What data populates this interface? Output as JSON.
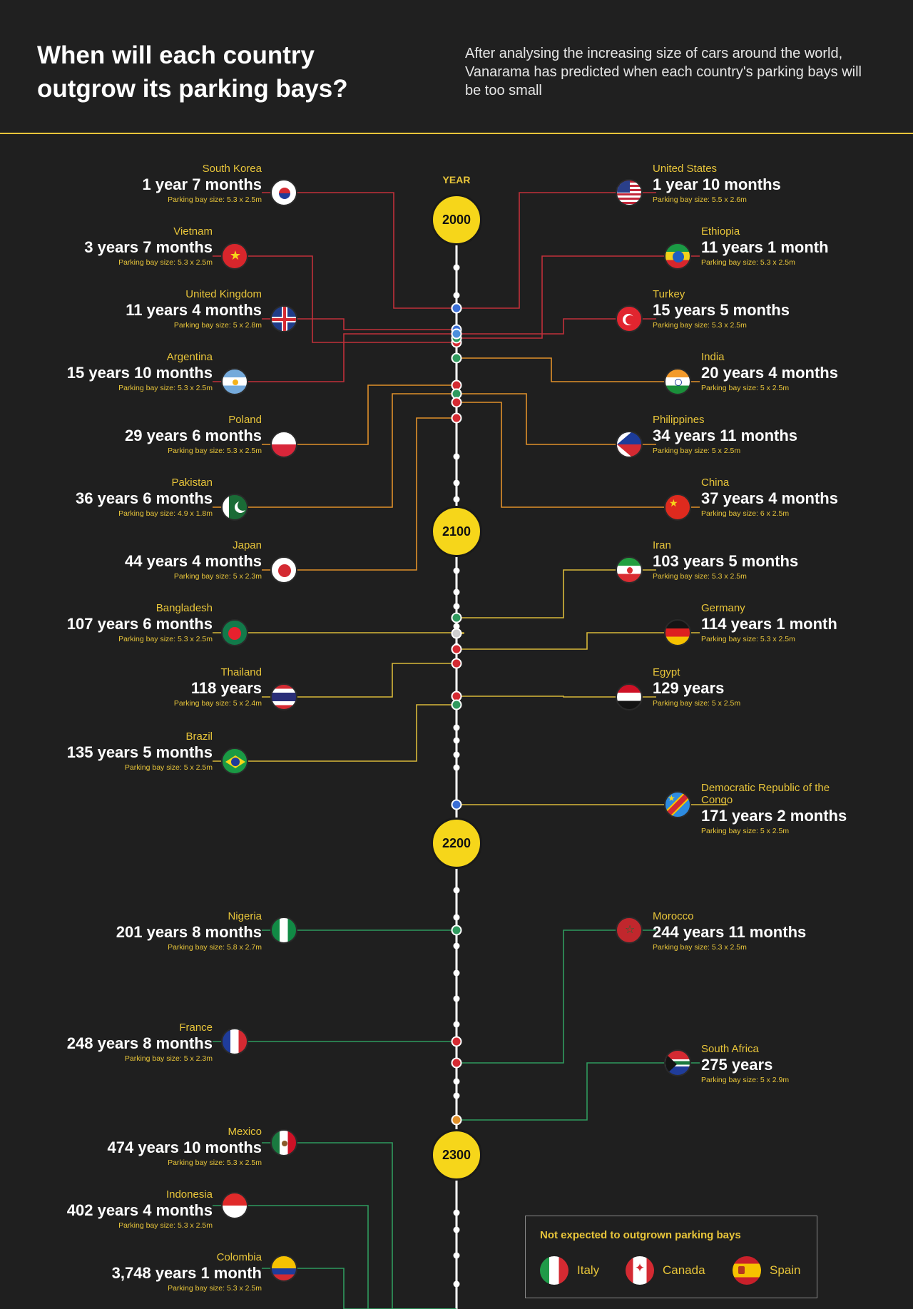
{
  "header": {
    "title": "When will each country outgrow its parking bays?",
    "subtitle": "After analysing the increasing size of cars around the world, Vanarama has predicted when each country's parking bays will be too small"
  },
  "timeline": {
    "axis_label": "YEAR",
    "years": [
      "2000",
      "2100",
      "2200",
      "2300"
    ]
  },
  "colors": {
    "background": "#1f1f1f",
    "accent": "#e8c53a",
    "year_bubble": "#f6d61a",
    "connector_red": "#c0303a",
    "connector_orange": "#e0902a",
    "connector_yellow": "#d8b83a",
    "connector_green": "#2f9a5e"
  },
  "countries": [
    {
      "name": "South Korea",
      "duration": "1 year 7 months",
      "bay": "Parking bay size: 5.3 x 2.5m",
      "flag_icon": "south-korea-flag-icon",
      "side": "left"
    },
    {
      "name": "United States",
      "duration": "1 year 10 months",
      "bay": "Parking bay size: 5.5 x 2.6m",
      "flag_icon": "united-states-flag-icon",
      "side": "right"
    },
    {
      "name": "Vietnam",
      "duration": "3 years 7 months",
      "bay": "Parking bay size: 5.3 x 2.5m",
      "flag_icon": "vietnam-flag-icon",
      "side": "left"
    },
    {
      "name": "Ethiopia",
      "duration": "11 years 1 month",
      "bay": "Parking bay size: 5.3 x 2.5m",
      "flag_icon": "ethiopia-flag-icon",
      "side": "right"
    },
    {
      "name": "United Kingdom",
      "duration": "11 years 4 months",
      "bay": "Parking bay size: 5 x 2.8m",
      "flag_icon": "united-kingdom-flag-icon",
      "side": "left"
    },
    {
      "name": "Turkey",
      "duration": "15 years 5 months",
      "bay": "Parking bay size: 5.3 x 2.5m",
      "flag_icon": "turkey-flag-icon",
      "side": "right"
    },
    {
      "name": "Argentina",
      "duration": "15 years 10 months",
      "bay": "Parking bay size: 5.3 x 2.5m",
      "flag_icon": "argentina-flag-icon",
      "side": "left"
    },
    {
      "name": "India",
      "duration": "20 years 4 months",
      "bay": "Parking bay size: 5 x 2.5m",
      "flag_icon": "india-flag-icon",
      "side": "right"
    },
    {
      "name": "Poland",
      "duration": "29 years 6 months",
      "bay": "Parking bay size: 5.3 x 2.5m",
      "flag_icon": "poland-flag-icon",
      "side": "left"
    },
    {
      "name": "Philippines",
      "duration": "34 years 11 months",
      "bay": "Parking bay size: 5 x 2.5m",
      "flag_icon": "philippines-flag-icon",
      "side": "right"
    },
    {
      "name": "Pakistan",
      "duration": "36 years 6 months",
      "bay": "Parking bay size: 4.9 x 1.8m",
      "flag_icon": "pakistan-flag-icon",
      "side": "left"
    },
    {
      "name": "China",
      "duration": "37 years 4 months",
      "bay": "Parking bay size: 6 x 2.5m",
      "flag_icon": "china-flag-icon",
      "side": "right"
    },
    {
      "name": "Japan",
      "duration": "44 years 4 months",
      "bay": "Parking bay size: 5 x 2.3m",
      "flag_icon": "japan-flag-icon",
      "side": "left"
    },
    {
      "name": "Iran",
      "duration": "103 years 5 months",
      "bay": "Parking bay size: 5.3 x 2.5m",
      "flag_icon": "iran-flag-icon",
      "side": "right"
    },
    {
      "name": "Bangladesh",
      "duration": "107 years 6 months",
      "bay": "Parking bay size: 5.3 x 2.5m",
      "flag_icon": "bangladesh-flag-icon",
      "side": "left"
    },
    {
      "name": "Germany",
      "duration": "114 years 1 month",
      "bay": "Parking bay size: 5.3 x 2.5m",
      "flag_icon": "germany-flag-icon",
      "side": "right"
    },
    {
      "name": "Thailand",
      "duration": "118 years",
      "bay": "Parking bay size: 5 x 2.4m",
      "flag_icon": "thailand-flag-icon",
      "side": "left"
    },
    {
      "name": "Egypt",
      "duration": "129 years",
      "bay": "Parking bay size: 5 x 2.5m",
      "flag_icon": "egypt-flag-icon",
      "side": "right"
    },
    {
      "name": "Brazil",
      "duration": "135 years 5 months",
      "bay": "Parking bay size: 5 x 2.5m",
      "flag_icon": "brazil-flag-icon",
      "side": "left"
    },
    {
      "name": "Democratic Republic of the Congo",
      "duration": "171 years 2 months",
      "bay": "Parking bay size: 5 x 2.5m",
      "flag_icon": "drc-flag-icon",
      "side": "right"
    },
    {
      "name": "Nigeria",
      "duration": "201 years 8 months",
      "bay": "Parking bay size: 5.8 x 2.7m",
      "flag_icon": "nigeria-flag-icon",
      "side": "left"
    },
    {
      "name": "Morocco",
      "duration": "244 years 11 months",
      "bay": "Parking bay size: 5.3 x 2.5m",
      "flag_icon": "morocco-flag-icon",
      "side": "right"
    },
    {
      "name": "France",
      "duration": "248 years 8 months",
      "bay": "Parking bay size: 5 x 2.3m",
      "flag_icon": "france-flag-icon",
      "side": "left"
    },
    {
      "name": "South Africa",
      "duration": "275 years",
      "bay": "Parking bay size: 5 x 2.9m",
      "flag_icon": "south-africa-flag-icon",
      "side": "right"
    },
    {
      "name": "Mexico",
      "duration": "474 years 10 months",
      "bay": "Parking bay size: 5.3 x 2.5m",
      "flag_icon": "mexico-flag-icon",
      "side": "left"
    },
    {
      "name": "Indonesia",
      "duration": "402 years 4 months",
      "bay": "Parking bay size: 5.3 x 2.5m",
      "flag_icon": "indonesia-flag-icon",
      "side": "left"
    },
    {
      "name": "Colombia",
      "duration": "3,748 years 1 month",
      "bay": "Parking bay size: 5.3 x 2.5m",
      "flag_icon": "colombia-flag-icon",
      "side": "left"
    }
  ],
  "legend": {
    "title": "Not expected to outgrown parking bays",
    "items": [
      {
        "name": "Italy",
        "flag_icon": "italy-flag-icon"
      },
      {
        "name": "Canada",
        "flag_icon": "canada-flag-icon"
      },
      {
        "name": "Spain",
        "flag_icon": "spain-flag-icon"
      }
    ]
  }
}
